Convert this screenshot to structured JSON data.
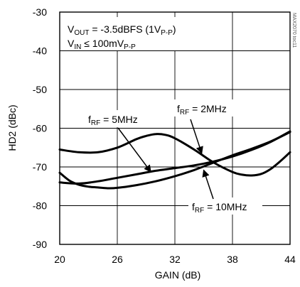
{
  "chart_data": {
    "type": "line",
    "title": "",
    "xlabel": "GAIN (dB)",
    "ylabel": "HD2 (dBc)",
    "xlim": [
      20,
      44
    ],
    "ylim": [
      -90,
      -30
    ],
    "xticks": [
      20,
      26,
      32,
      38,
      44
    ],
    "yticks": [
      -30,
      -40,
      -50,
      -60,
      -70,
      -80,
      -90
    ],
    "grid": true,
    "legend": "none",
    "watermark": "MAX2070 toc11",
    "conditions": [
      {
        "main": "V",
        "sub": "OUT",
        "rest": " = -3.5dBFS (1V",
        "sub2": "P-P",
        "end": ")"
      },
      {
        "main": "V",
        "sub": "IN",
        "rest": " ≤ 100mV",
        "sub2": "P-P",
        "end": ""
      }
    ],
    "series": [
      {
        "name": "fRF = 2MHz",
        "label": {
          "main": "f",
          "sub": "RF",
          "rest": " = 2MHz"
        },
        "x": [
          20,
          22,
          24,
          26,
          28,
          29,
          30,
          31,
          32,
          34,
          36,
          38,
          39,
          40,
          41,
          42,
          43,
          44
        ],
        "y": [
          -65.5,
          -66.2,
          -66.2,
          -65,
          -62.8,
          -62,
          -61.5,
          -61.7,
          -62.6,
          -65.5,
          -68.8,
          -71.3,
          -72,
          -72.2,
          -71.8,
          -70.5,
          -68.5,
          -66.2
        ]
      },
      {
        "name": "fRF = 5MHz",
        "label": {
          "main": "f",
          "sub": "RF",
          "rest": " = 5MHz"
        },
        "x": [
          20,
          22,
          24,
          26,
          28,
          30,
          32,
          34,
          36,
          38,
          40,
          42,
          44
        ],
        "y": [
          -74,
          -74.3,
          -73.7,
          -72.8,
          -71.9,
          -71,
          -70.3,
          -69.6,
          -68.6,
          -67.3,
          -65.6,
          -63.5,
          -60.8
        ]
      },
      {
        "name": "fRF = 10MHz",
        "label": {
          "main": "f",
          "sub": "RF",
          "rest": " = 10MHz"
        },
        "x": [
          20,
          21,
          22,
          23,
          24,
          25,
          26,
          28,
          30,
          32,
          34,
          36,
          38,
          40,
          42,
          44
        ],
        "y": [
          -71.5,
          -73.5,
          -74.6,
          -75.1,
          -75.3,
          -75.5,
          -75.4,
          -74.7,
          -73.7,
          -72.4,
          -70.8,
          -68.9,
          -67,
          -65.3,
          -63.4,
          -61
        ]
      }
    ]
  }
}
